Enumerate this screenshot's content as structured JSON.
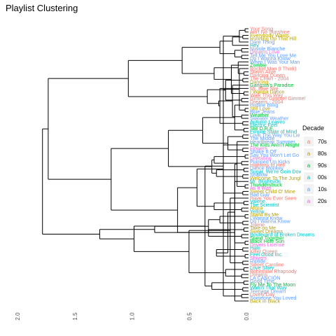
{
  "chart_data": {
    "type": "dendrogram",
    "title": "Playlist Clustering",
    "xlabel": "",
    "ylabel": "",
    "xlim": [
      2.0,
      0.0
    ],
    "x_ticks": [
      2.0,
      1.5,
      1.0,
      0.5,
      0.0
    ],
    "x_tick_labels": [
      "2.0",
      "1.5",
      "1.0",
      "0.5",
      "0.0"
    ],
    "grid": false,
    "legend": {
      "title": "Decade",
      "position": "right",
      "entries": [
        {
          "label": "70s",
          "color": "#f8766d"
        },
        {
          "label": "80s",
          "color": "#b79f00"
        },
        {
          "label": "90s",
          "color": "#00ba38"
        },
        {
          "label": "00s",
          "color": "#00bfc4"
        },
        {
          "label": "10s",
          "color": "#619cff"
        },
        {
          "label": "20s",
          "color": "#f564e3"
        }
      ]
    },
    "leaves": [
      {
        "label": "Your Song",
        "decade": "70s"
      },
      {
        "label": "Ain't No Sunshine",
        "decade": "70s"
      },
      {
        "label": "Everybody Wants",
        "decade": "80s"
      },
      {
        "label": "Running Up That Hill",
        "decade": "80s"
      },
      {
        "label": "Dare Thing",
        "decade": "10s"
      },
      {
        "label": "Hey",
        "decade": "00s"
      },
      {
        "label": "Nuvole Bianche",
        "decade": "10s"
      },
      {
        "label": "Dreams Love",
        "decade": "20s"
      },
      {
        "label": "Tell Me You Love Me",
        "decade": "10s"
      },
      {
        "label": "Do I Wanna Know",
        "decade": "10s"
      },
      {
        "label": "When I Was Your Man",
        "decade": "10s"
      },
      {
        "label": "Zombie",
        "decade": "90s"
      },
      {
        "label": "Rocket Man (I Think)",
        "decade": "70s"
      },
      {
        "label": "Stayin Alive",
        "decade": "70s"
      },
      {
        "label": "Dancing Queen",
        "decade": "70s"
      },
      {
        "label": "The Chain - 2004",
        "decade": "70s"
      },
      {
        "label": "Dancing",
        "decade": "80s"
      },
      {
        "label": "Gangsta's Paradise",
        "decade": "90s"
      },
      {
        "label": "Mr. Blue Sky",
        "decade": "70s"
      },
      {
        "label": "I Wanna Dance",
        "decade": "80s"
      },
      {
        "label": "Walk This Way",
        "decade": "70s"
      },
      {
        "label": "Gimme! Gimme! Gimme!",
        "decade": "70s"
      },
      {
        "label": "Dreams - 2004",
        "decade": "70s"
      },
      {
        "label": "Hotline Bling",
        "decade": "10s"
      },
      {
        "label": "Still Love",
        "decade": "80s"
      },
      {
        "label": "Blue Jeans",
        "decade": "10s"
      },
      {
        "label": "Weather",
        "decade": "90s"
      },
      {
        "label": "Sweater Weather",
        "decade": "10s"
      },
      {
        "label": "Autumn Leaves",
        "decade": "00s"
      },
      {
        "label": "Electric Feel",
        "decade": "00s"
      },
      {
        "label": "Still D.R.E.",
        "decade": "90s"
      },
      {
        "label": "Empire State of Mind",
        "decade": "00s"
      },
      {
        "label": "Love The Way You Lie",
        "decade": "10s"
      },
      {
        "label": "The Middle",
        "decade": "10s"
      },
      {
        "label": "Heartbreak Summer",
        "decade": "10s"
      },
      {
        "label": "The Kids Aren't Alright",
        "decade": "90s"
      },
      {
        "label": "Flowers",
        "decade": "20s"
      },
      {
        "label": "Shake It Off",
        "decade": "10s"
      },
      {
        "label": "Say You Won't Let Go",
        "decade": "10s"
      },
      {
        "label": "Levitating",
        "decade": "20s"
      },
      {
        "label": "Pumped Up Kicks",
        "decade": "10s"
      },
      {
        "label": "Highway to Hell",
        "decade": "70s"
      },
      {
        "label": "Dance Monkey",
        "decade": "10s"
      },
      {
        "label": "Sugar, We're Goin Down",
        "decade": "00s"
      },
      {
        "label": "Shallow",
        "decade": "10s"
      },
      {
        "label": "Welcome To The Jungle",
        "decade": "80s"
      },
      {
        "label": "Mr. Brightside",
        "decade": "00s"
      },
      {
        "label": "Thunderstruck",
        "decade": "90s"
      },
      {
        "label": "As It Was",
        "decade": "20s"
      },
      {
        "label": "Sweet Child O' Mine",
        "decade": "80s"
      },
      {
        "label": "Bad Guy",
        "decade": "10s"
      },
      {
        "label": "Have You Ever Seen",
        "decade": "70s"
      },
      {
        "label": "Valerie",
        "decade": "00s"
      },
      {
        "label": "The Scientist",
        "decade": "00s"
      },
      {
        "label": "Africa",
        "decade": "80s"
      },
      {
        "label": "Yellow",
        "decade": "00s"
      },
      {
        "label": "Stand By Me",
        "decade": "80s"
      },
      {
        "label": "I Wanna Know",
        "decade": "10s"
      },
      {
        "label": "Do I Wanna Know",
        "decade": "10s"
      },
      {
        "label": "Jolene",
        "decade": "70s"
      },
      {
        "label": "Take on Me",
        "decade": "80s"
      },
      {
        "label": "Sweet Dreams",
        "decade": "80s"
      },
      {
        "label": "Boulevard of Broken Dreams",
        "decade": "00s"
      },
      {
        "label": "Stand Together",
        "decade": "90s"
      },
      {
        "label": "Black Hole Sun",
        "decade": "90s"
      },
      {
        "label": "Drivers License",
        "decade": "20s"
      },
      {
        "label": "Halo",
        "decade": "00s"
      },
      {
        "label": "Killer Queen",
        "decade": "70s"
      },
      {
        "label": "Feel Good Inc.",
        "decade": "00s"
      },
      {
        "label": "Shivers",
        "decade": "20s"
      },
      {
        "label": "Riptide",
        "decade": "10s"
      },
      {
        "label": "Sweet Caroline",
        "decade": "70s"
      },
      {
        "label": "Love Story",
        "decade": "00s"
      },
      {
        "label": "Bohemian Rhapsody",
        "decade": "70s"
      },
      {
        "label": "Dreams",
        "decade": "70s"
      },
      {
        "label": "LA CANCIÓN",
        "decade": "10s"
      },
      {
        "label": "Good Time",
        "decade": "10s"
      },
      {
        "label": "Fly Me To The Moon",
        "decade": "90s"
      },
      {
        "label": "Watch That Way",
        "decade": "00s"
      },
      {
        "label": "Teenage Dream",
        "decade": "10s"
      },
      {
        "label": "Lovely Day",
        "decade": "70s"
      },
      {
        "label": "Someone You Loved",
        "decade": "10s"
      },
      {
        "label": "Back in Black",
        "decade": "80s"
      }
    ],
    "merges": [
      [
        0,
        1,
        0.03
      ],
      [
        2,
        3,
        0.05
      ],
      [
        6,
        7,
        0.06
      ],
      [
        8,
        9,
        0.06
      ],
      [
        13,
        14,
        0.04
      ],
      [
        15,
        16,
        0.05
      ],
      [
        19,
        20,
        0.04
      ],
      [
        21,
        22,
        0.06
      ],
      [
        24,
        25,
        0.03
      ],
      [
        26,
        27,
        0.06
      ],
      [
        28,
        29,
        0.05
      ],
      [
        30,
        31,
        0.04
      ],
      [
        32,
        33,
        0.05
      ],
      [
        36,
        37,
        0.05
      ],
      [
        38,
        39,
        0.03
      ],
      [
        40,
        41,
        0.06
      ],
      [
        42,
        43,
        0.04
      ],
      [
        44,
        45,
        0.05
      ],
      [
        47,
        48,
        0.03
      ],
      [
        49,
        50,
        0.05
      ],
      [
        52,
        53,
        0.04
      ],
      [
        54,
        55,
        0.06
      ],
      [
        56,
        57,
        0.03
      ],
      [
        58,
        59,
        0.05
      ],
      [
        60,
        61,
        0.04
      ],
      [
        62,
        63,
        0.06
      ],
      [
        64,
        65,
        0.03
      ],
      [
        66,
        67,
        0.05
      ],
      [
        68,
        69,
        0.03
      ],
      [
        70,
        71,
        0.05
      ],
      [
        72,
        73,
        0.04
      ],
      [
        74,
        75,
        0.06
      ],
      [
        76,
        77,
        0.04
      ],
      [
        78,
        79,
        0.05
      ],
      [
        80,
        81,
        0.06
      ],
      [
        83,
        4,
        0.08
      ],
      [
        84,
        5,
        0.14
      ],
      [
        85,
        86,
        0.12
      ],
      [
        87,
        10,
        0.09
      ],
      [
        89,
        11,
        0.15
      ],
      [
        88,
        90,
        0.2
      ],
      [
        91,
        12,
        0.08
      ],
      [
        92,
        17,
        0.14
      ],
      [
        93,
        18,
        0.25
      ],
      [
        94,
        23,
        0.12
      ],
      [
        95,
        96,
        0.18
      ],
      [
        98,
        97,
        0.3
      ],
      [
        99,
        100,
        0.28
      ],
      [
        101,
        34,
        0.1
      ],
      [
        102,
        35,
        0.22
      ],
      [
        103,
        104,
        0.3
      ],
      [
        105,
        106,
        0.25
      ],
      [
        107,
        108,
        0.35
      ],
      [
        109,
        46,
        0.12
      ],
      [
        110,
        111,
        0.28
      ],
      [
        112,
        51,
        0.16
      ],
      [
        113,
        114,
        0.2
      ],
      [
        115,
        116,
        0.32
      ],
      [
        117,
        118,
        0.22
      ],
      [
        119,
        120,
        0.25
      ],
      [
        121,
        122,
        0.3
      ],
      [
        123,
        124,
        0.22
      ],
      [
        125,
        126,
        0.26
      ],
      [
        127,
        128,
        0.4
      ],
      [
        129,
        130,
        0.32
      ],
      [
        131,
        82,
        0.12
      ],
      [
        132,
        133,
        0.45
      ],
      [
        134,
        135,
        0.35
      ],
      [
        136,
        137,
        0.18
      ],
      [
        138,
        139,
        0.52
      ],
      [
        140,
        141,
        0.38
      ],
      [
        142,
        143,
        0.58
      ],
      [
        144,
        145,
        0.36
      ],
      [
        146,
        147,
        0.7
      ],
      [
        148,
        149,
        0.62
      ],
      [
        150,
        151,
        0.82
      ],
      [
        152,
        153,
        1.0
      ],
      [
        154,
        155,
        1.05
      ],
      [
        156,
        157,
        1.2
      ],
      [
        158,
        159,
        1.3
      ],
      [
        160,
        161,
        1.75
      ],
      [
        162,
        163,
        1.8
      ]
    ]
  }
}
